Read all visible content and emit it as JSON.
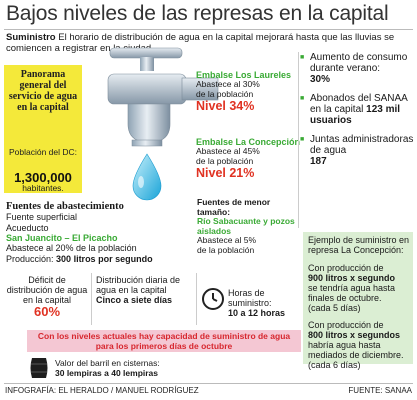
{
  "title": "Bajos niveles de las represas en la capital",
  "intro": {
    "lead": "Suministro",
    "text": " El horario de distribución de agua en la capital mejorará hasta que las lluvias se comiencen a  registrar  en la ciudad"
  },
  "panorama": {
    "title": "Panorama general del servicio de agua en la capital",
    "population_label": "Población del DC:",
    "population_value": "1,300,000",
    "population_unit": "habitantes."
  },
  "dams": [
    {
      "name": "Embalse Los Laureles",
      "line1": "Abastece al 30%",
      "line2": "de la población",
      "level": "Nivel 34%"
    },
    {
      "name": "Embalse La Concepción",
      "line1": "Abastece al 45%",
      "line2": "de la población",
      "level": "Nivel 21%"
    }
  ],
  "sources": {
    "title": "Fuentes de abastecimiento",
    "items": [
      "Fuente superficial",
      "Acueducto"
    ],
    "system": "San Juancito – El Picacho",
    "supplies": "Abastece al  20%  de la población",
    "production_label": "Producción:",
    "production_value": "300 litros por segundo"
  },
  "minor_sources": {
    "title": "Fuentes de menor tamaño:",
    "name": "Río Sabacuante y pozos aislados",
    "line1": "Abastece al 5%",
    "line2": "de la población"
  },
  "facts": [
    {
      "text": "Aumento de consumo durante verano:",
      "value": "30%"
    },
    {
      "text": "Abonados del SANAA  en la capital",
      "value": "123  mil usuarios"
    },
    {
      "text": "Juntas administradoras de agua",
      "value": "187"
    }
  ],
  "example": {
    "heading": "Ejemplo de suministro en represa La Concepción:",
    "case1_pre": "Con producción de",
    "case1_value": "900 litros x segundo",
    "case1_post": "se tendría agua hasta finales de octubre.",
    "case1_note": "(cada 5 días)",
    "case2_pre": "Con producción de",
    "case2_value": "800 litros x segundos",
    "case2_post": "habría agua hasta mediados de diciembre.",
    "case2_note": "(cada 6 días)"
  },
  "stats": {
    "deficit_label": "Déficit de distribución de agua en la capital",
    "deficit_value": "60%",
    "daily_label": "Distribución diaria de agua en la capital",
    "daily_value": "Cinco a siete días",
    "hours_label": "Horas de suministro:",
    "hours_value": "10 a 12 horas"
  },
  "warning": "Con los niveles actuales hay capacidad de suministro de agua para los primeros días de octubre",
  "barrel": {
    "label": "Valor del barril en cisternas:",
    "value": "30 lempiras a 40 lempiras"
  },
  "footer": {
    "credit": "INFOGRAFÍA: EL HERALDO / MANUEL RODRÍGUEZ",
    "source": "FUENTE: SANAA"
  },
  "colors": {
    "accent_green": "#3aaa35",
    "accent_red": "#e03222",
    "panel_yellow": "#f4e93a",
    "example_bg": "#dbeed3",
    "warning_bg": "#f4c7d3"
  }
}
